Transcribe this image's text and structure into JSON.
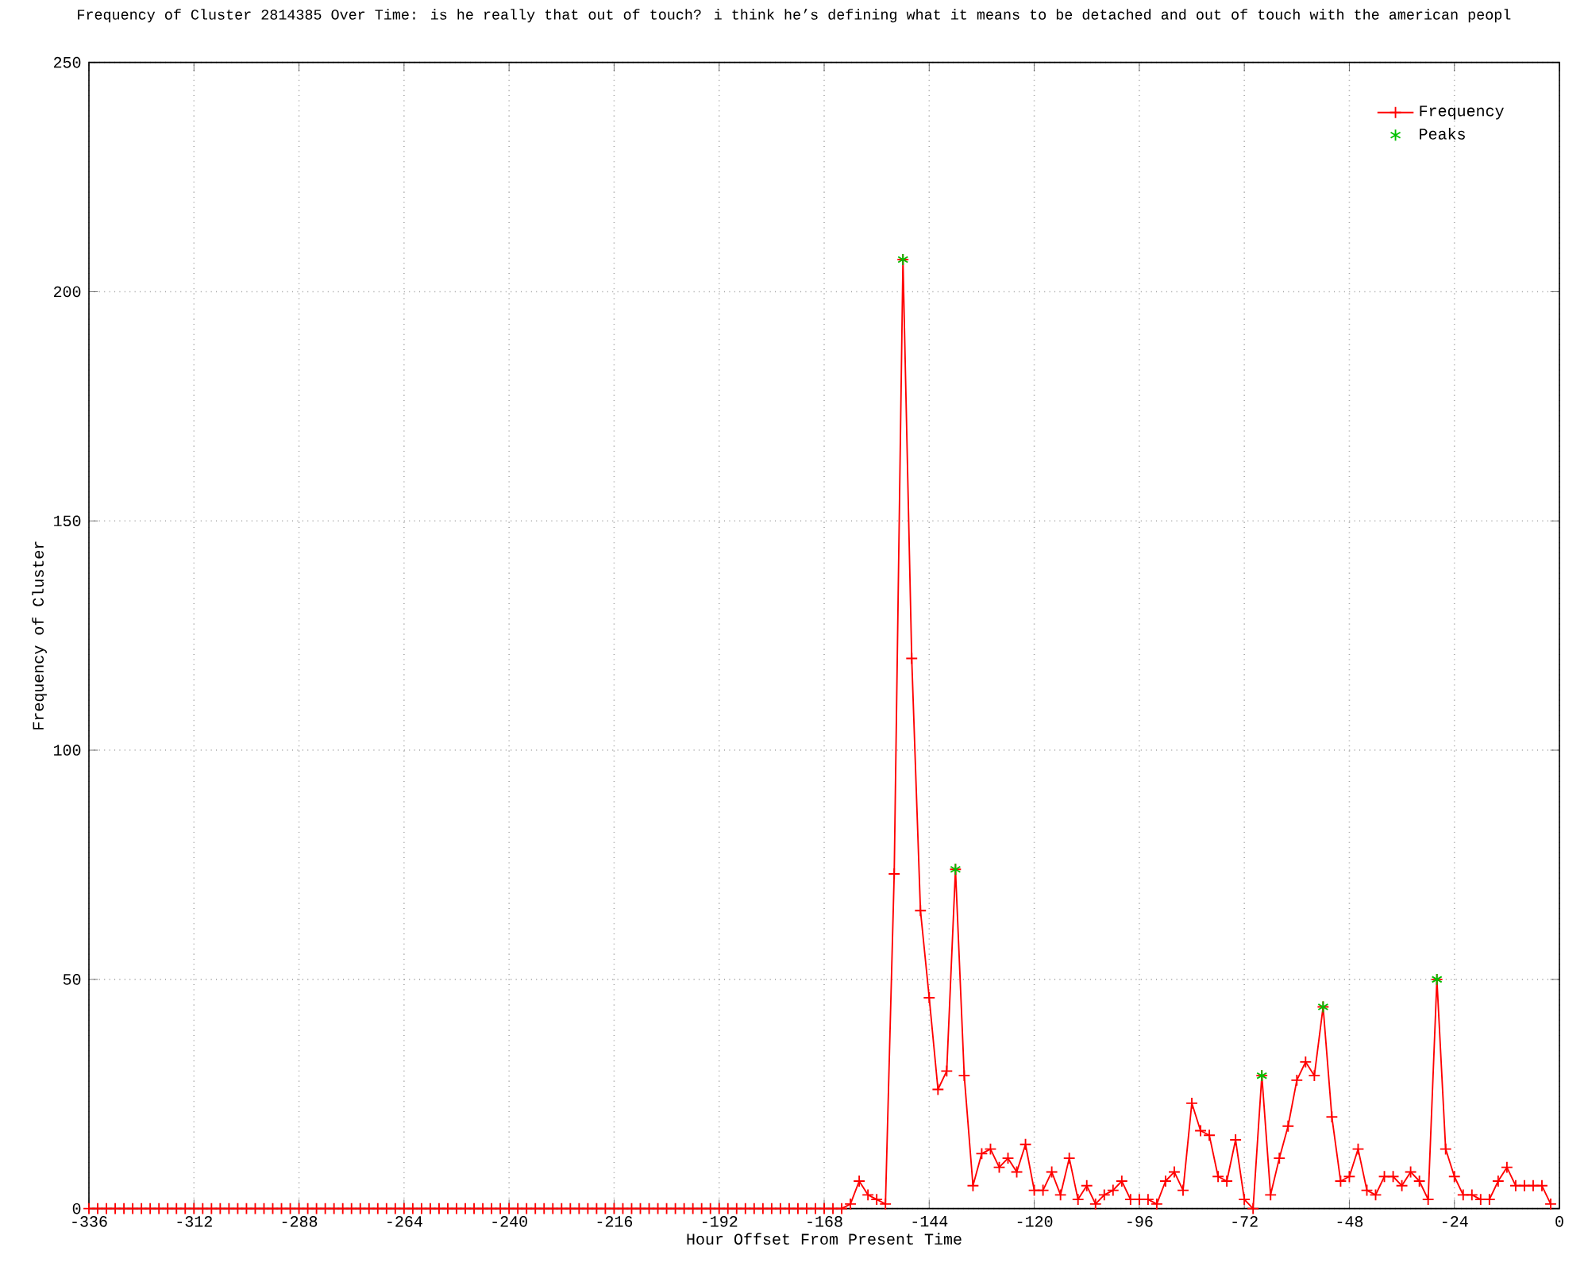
{
  "chart_data": {
    "type": "line",
    "title": "Frequency of Cluster 2814385 Over Time: is he really that out of touch? i think he’s defining what it means to be detached and out of touch with the american peopl",
    "xlabel": "Hour Offset From Present Time",
    "ylabel": "Frequency of Cluster",
    "xlim": [
      -336,
      0
    ],
    "ylim": [
      0,
      250
    ],
    "xticks": [
      -336,
      -312,
      -288,
      -264,
      -240,
      -216,
      -192,
      -168,
      -144,
      -120,
      -96,
      -72,
      -48,
      -24,
      0
    ],
    "yticks": [
      0,
      50,
      100,
      150,
      200,
      250
    ],
    "grid": true,
    "legend": "top right",
    "series": [
      {
        "name": "Frequency",
        "color": "#ff0000",
        "marker": "cross",
        "x": [
          -336,
          -334,
          -332,
          -330,
          -328,
          -326,
          -324,
          -322,
          -320,
          -318,
          -316,
          -314,
          -312,
          -310,
          -308,
          -306,
          -304,
          -302,
          -300,
          -298,
          -296,
          -294,
          -292,
          -290,
          -288,
          -286,
          -284,
          -282,
          -280,
          -278,
          -276,
          -274,
          -272,
          -270,
          -268,
          -266,
          -264,
          -262,
          -260,
          -258,
          -256,
          -254,
          -252,
          -250,
          -248,
          -246,
          -244,
          -242,
          -240,
          -238,
          -236,
          -234,
          -232,
          -230,
          -228,
          -226,
          -224,
          -222,
          -220,
          -218,
          -216,
          -214,
          -212,
          -210,
          -208,
          -206,
          -204,
          -202,
          -200,
          -198,
          -196,
          -194,
          -192,
          -190,
          -188,
          -186,
          -184,
          -182,
          -180,
          -178,
          -176,
          -174,
          -172,
          -170,
          -168,
          -166,
          -164,
          -162,
          -160,
          -158,
          -156,
          -154,
          -152,
          -150,
          -148,
          -146,
          -144,
          -142,
          -140,
          -138,
          -136,
          -134,
          -132,
          -130,
          -128,
          -126,
          -124,
          -122,
          -120,
          -118,
          -116,
          -114,
          -112,
          -110,
          -108,
          -106,
          -104,
          -102,
          -100,
          -98,
          -96,
          -94,
          -92,
          -90,
          -88,
          -86,
          -84,
          -82,
          -80,
          -78,
          -76,
          -74,
          -72,
          -70,
          -68,
          -66,
          -64,
          -62,
          -60,
          -58,
          -56,
          -54,
          -52,
          -50,
          -48,
          -46,
          -44,
          -42,
          -40,
          -38,
          -36,
          -34,
          -32,
          -30,
          -28,
          -26,
          -24,
          -22,
          -20,
          -18,
          -16,
          -14,
          -12,
          -10,
          -8,
          -6,
          -4,
          -2
        ],
        "values": [
          0,
          0,
          0,
          0,
          0,
          0,
          0,
          0,
          0,
          0,
          0,
          0,
          0,
          0,
          0,
          0,
          0,
          0,
          0,
          0,
          0,
          0,
          0,
          0,
          0,
          0,
          0,
          0,
          0,
          0,
          0,
          0,
          0,
          0,
          0,
          0,
          0,
          0,
          0,
          0,
          0,
          0,
          0,
          0,
          0,
          0,
          0,
          0,
          0,
          0,
          0,
          0,
          0,
          0,
          0,
          0,
          0,
          0,
          0,
          0,
          0,
          0,
          0,
          0,
          0,
          0,
          0,
          0,
          0,
          0,
          0,
          0,
          0,
          0,
          0,
          0,
          0,
          0,
          0,
          0,
          0,
          0,
          0,
          0,
          0,
          0,
          0,
          1,
          6,
          3,
          2,
          1,
          73,
          207,
          120,
          65,
          46,
          26,
          30,
          74,
          29,
          5,
          12,
          13,
          9,
          11,
          8,
          14,
          4,
          4,
          8,
          3,
          11,
          2,
          5,
          1,
          3,
          4,
          6,
          2,
          2,
          2,
          1,
          6,
          8,
          4,
          23,
          17,
          16,
          7,
          6,
          15,
          2,
          0,
          29,
          3,
          11,
          18,
          28,
          32,
          29,
          44,
          20,
          6,
          7,
          13,
          4,
          3,
          7,
          7,
          5,
          8,
          6,
          2,
          50,
          13,
          7,
          3,
          3,
          2,
          2,
          6,
          9,
          5,
          5,
          5,
          5,
          1
        ]
      },
      {
        "name": "Peaks",
        "type": "scatter",
        "color": "#00c000",
        "marker": "cross",
        "x": [
          -150,
          -138,
          -68,
          -54,
          -28
        ],
        "values": [
          207,
          74,
          29,
          44,
          50
        ]
      }
    ]
  }
}
